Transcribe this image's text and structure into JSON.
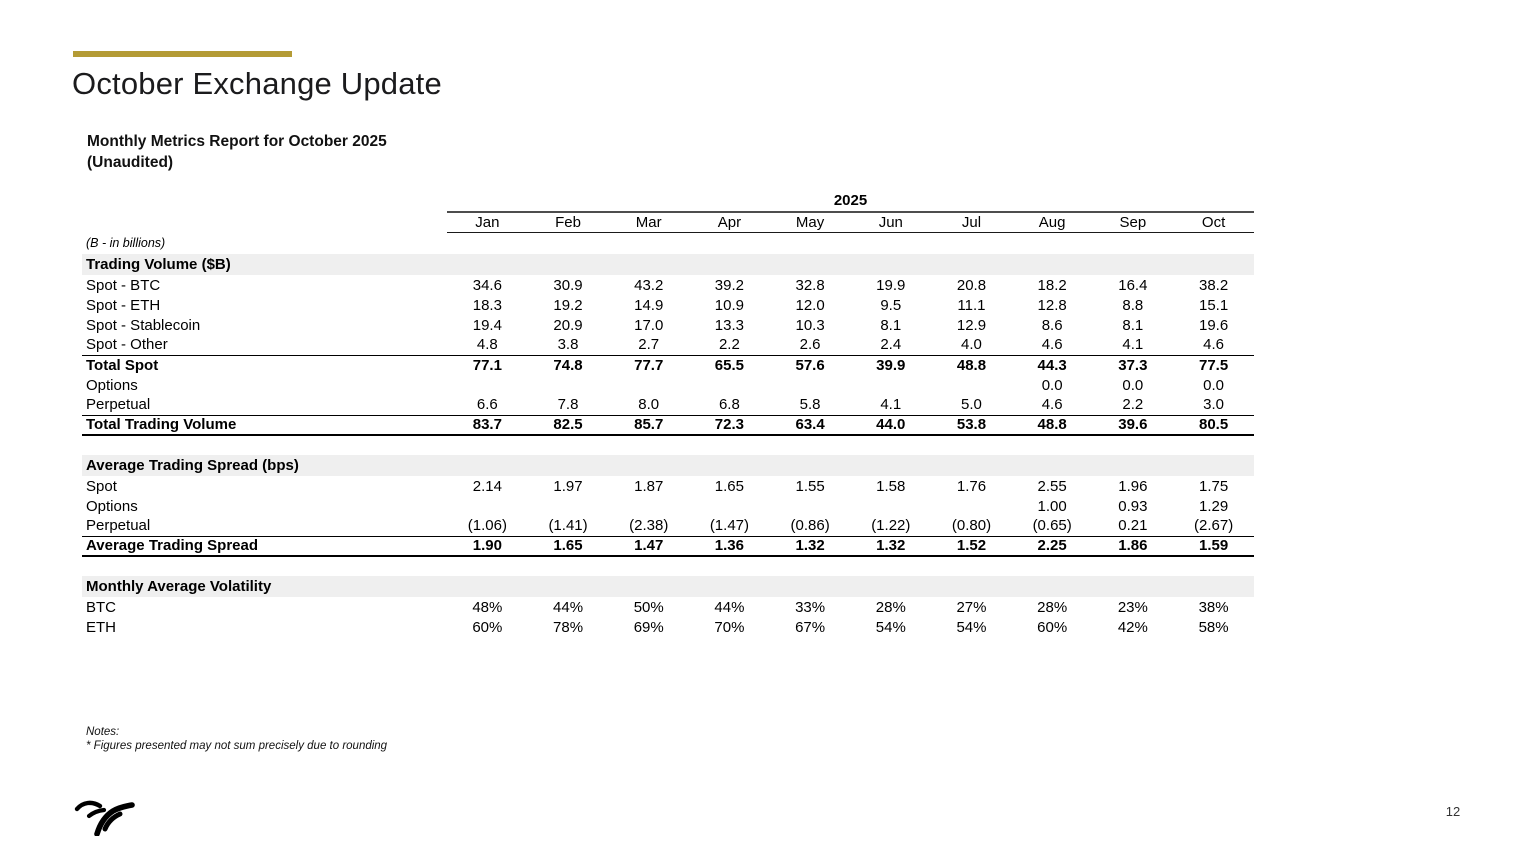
{
  "slide": {
    "title": "October Exchange Update",
    "subtitle_line1": "Monthly Metrics Report for October 2025",
    "subtitle_line2": "(Unaudited)",
    "accent_color": "#b49b35",
    "notes_label": "Notes:",
    "notes_text": "* Figures presented may not sum precisely due to rounding",
    "page_number": "12",
    "logo": "bull-horns-logo"
  },
  "table": {
    "year_header": "2025",
    "unit_note": "(B - in billions)",
    "months": [
      "Jan",
      "Feb",
      "Mar",
      "Apr",
      "May",
      "Jun",
      "Jul",
      "Aug",
      "Sep",
      "Oct"
    ],
    "sections": [
      {
        "header": "Trading Volume ($B)",
        "rows": [
          {
            "label": "Spot - BTC",
            "bold": false,
            "line": null,
            "values": [
              "34.6",
              "30.9",
              "43.2",
              "39.2",
              "32.8",
              "19.9",
              "20.8",
              "18.2",
              "16.4",
              "38.2"
            ]
          },
          {
            "label": "Spot - ETH",
            "bold": false,
            "line": null,
            "values": [
              "18.3",
              "19.2",
              "14.9",
              "10.9",
              "12.0",
              "9.5",
              "11.1",
              "12.8",
              "8.8",
              "15.1"
            ]
          },
          {
            "label": "Spot - Stablecoin",
            "bold": false,
            "line": null,
            "values": [
              "19.4",
              "20.9",
              "17.0",
              "13.3",
              "10.3",
              "8.1",
              "12.9",
              "8.6",
              "8.1",
              "19.6"
            ]
          },
          {
            "label": "Spot - Other",
            "bold": false,
            "line": "thin",
            "values": [
              "4.8",
              "3.8",
              "2.7",
              "2.2",
              "2.6",
              "2.4",
              "4.0",
              "4.6",
              "4.1",
              "4.6"
            ]
          },
          {
            "label": "Total Spot",
            "bold": true,
            "line": null,
            "values": [
              "77.1",
              "74.8",
              "77.7",
              "65.5",
              "57.6",
              "39.9",
              "48.8",
              "44.3",
              "37.3",
              "77.5"
            ]
          },
          {
            "label": "Options",
            "bold": false,
            "line": null,
            "values": [
              "",
              "",
              "",
              "",
              "",
              "",
              "",
              "0.0",
              "0.0",
              "0.0"
            ]
          },
          {
            "label": "Perpetual",
            "bold": false,
            "line": "thin",
            "values": [
              "6.6",
              "7.8",
              "8.0",
              "6.8",
              "5.8",
              "4.1",
              "5.0",
              "4.6",
              "2.2",
              "3.0"
            ]
          },
          {
            "label": "Total Trading Volume",
            "bold": true,
            "line": "thick",
            "values": [
              "83.7",
              "82.5",
              "85.7",
              "72.3",
              "63.4",
              "44.0",
              "53.8",
              "48.8",
              "39.6",
              "80.5"
            ]
          }
        ]
      },
      {
        "header": "Average Trading Spread (bps)",
        "rows": [
          {
            "label": "Spot",
            "bold": false,
            "line": null,
            "values": [
              "2.14",
              "1.97",
              "1.87",
              "1.65",
              "1.55",
              "1.58",
              "1.76",
              "2.55",
              "1.96",
              "1.75"
            ]
          },
          {
            "label": "Options",
            "bold": false,
            "line": null,
            "values": [
              "",
              "",
              "",
              "",
              "",
              "",
              "",
              "1.00",
              "0.93",
              "1.29"
            ]
          },
          {
            "label": "Perpetual",
            "bold": false,
            "line": "thin",
            "values": [
              "(1.06)",
              "(1.41)",
              "(2.38)",
              "(1.47)",
              "(0.86)",
              "(1.22)",
              "(0.80)",
              "(0.65)",
              "0.21",
              "(2.67)"
            ]
          },
          {
            "label": "Average Trading Spread",
            "bold": true,
            "line": "thick",
            "values": [
              "1.90",
              "1.65",
              "1.47",
              "1.36",
              "1.32",
              "1.32",
              "1.52",
              "2.25",
              "1.86",
              "1.59"
            ]
          }
        ]
      },
      {
        "header": "Monthly Average Volatility",
        "rows": [
          {
            "label": "BTC",
            "bold": false,
            "line": null,
            "values": [
              "48%",
              "44%",
              "50%",
              "44%",
              "33%",
              "28%",
              "27%",
              "28%",
              "23%",
              "38%"
            ]
          },
          {
            "label": "ETH",
            "bold": false,
            "line": null,
            "values": [
              "60%",
              "78%",
              "69%",
              "70%",
              "67%",
              "54%",
              "54%",
              "60%",
              "42%",
              "58%"
            ]
          }
        ]
      }
    ]
  }
}
